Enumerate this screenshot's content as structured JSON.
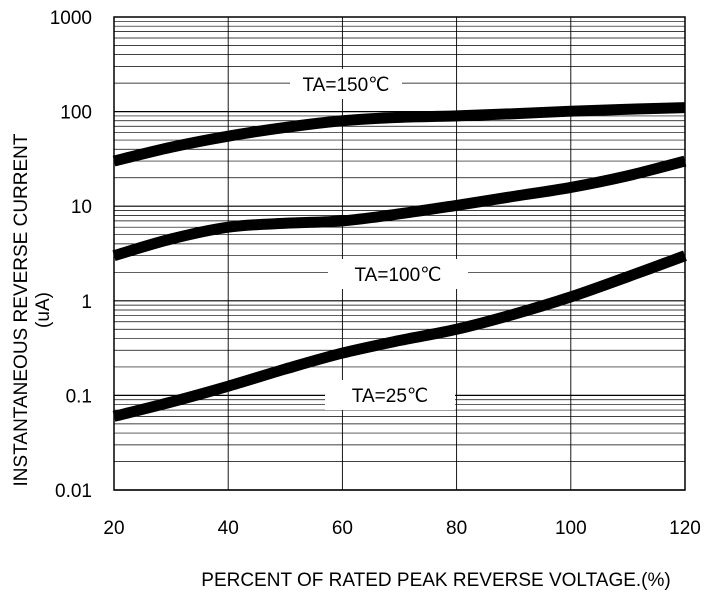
{
  "chart_data": {
    "type": "line",
    "xlabel": "PERCENT OF RATED PEAK REVERSE VOLTAGE.(%)",
    "ylabel": "INSTANTANEOUS REVERSE CURRENT",
    "ylabel_unit": "(uA)",
    "x_scale": "linear",
    "y_scale": "log",
    "xlim": [
      20,
      120
    ],
    "ylim": [
      0.01,
      1000
    ],
    "x_ticks": [
      "20",
      "40",
      "60",
      "80",
      "100",
      "120"
    ],
    "y_ticks": [
      "0.01",
      "0.1",
      "1",
      "10",
      "100",
      "1000"
    ],
    "grid": true,
    "series": [
      {
        "name": "TA=150℃",
        "x": [
          20,
          30,
          40,
          50,
          60,
          70,
          80,
          90,
          100,
          110,
          120
        ],
        "y": [
          30,
          42,
          55,
          68,
          80,
          87,
          90,
          95,
          101,
          106,
          110
        ]
      },
      {
        "name": "TA=100℃",
        "x": [
          20,
          30,
          40,
          50,
          60,
          70,
          80,
          90,
          100,
          110,
          120
        ],
        "y": [
          3,
          4.5,
          6,
          6.6,
          7,
          8.3,
          10.2,
          12.7,
          15.8,
          21,
          30
        ]
      },
      {
        "name": "TA=25℃",
        "x": [
          20,
          30,
          40,
          50,
          60,
          70,
          80,
          90,
          100,
          110,
          120
        ],
        "y": [
          0.06,
          0.085,
          0.125,
          0.19,
          0.28,
          0.38,
          0.5,
          0.72,
          1.1,
          1.8,
          3
        ]
      }
    ]
  }
}
